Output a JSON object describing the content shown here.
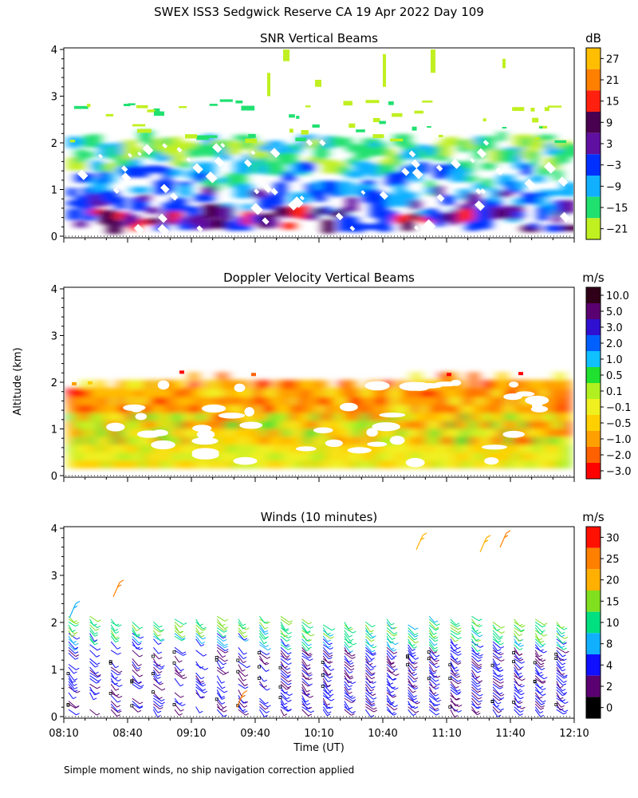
{
  "title": "SWEX ISS3 Sedgwick Reserve CA  19 Apr 2022 Day 109",
  "footnote": "Simple moment winds, no ship navigation correction applied",
  "chart_data": [
    {
      "type": "heatmap",
      "title": "SNR Vertical Beams",
      "ylabel": "",
      "yticks": [
        "0",
        "1",
        "2",
        "3",
        "4"
      ],
      "ylim": [
        0,
        4
      ],
      "xlim": [
        "08:10",
        "12:10"
      ],
      "colorbar": {
        "unit": "dB",
        "labels": [
          "27",
          "21",
          "15",
          "9",
          "3",
          "−3",
          "−9",
          "−15",
          "−21"
        ],
        "colors": [
          "#ffbf00",
          "#ff8000",
          "#ff2010",
          "#4a0050",
          "#6010a0",
          "#0030ff",
          "#10b0ff",
          "#20e070",
          "#c0f020"
        ]
      },
      "note": "Data shown from ~0.15 to ~2.1 km with sparse returns up to 4 km; strongest returns below 1 km"
    },
    {
      "type": "heatmap",
      "title": "Doppler Velocity Vertical Beams",
      "ylabel": "Altitude (km)",
      "yticks": [
        "0",
        "1",
        "2",
        "3",
        "4"
      ],
      "ylim": [
        0,
        4
      ],
      "xlim": [
        "08:10",
        "12:10"
      ],
      "colorbar": {
        "unit": "m/s",
        "labels": [
          "10.0",
          "5.0",
          "3.0",
          "2.0",
          "1.0",
          "0.5",
          "0.1",
          "−0.1",
          "−0.5",
          "−1.0",
          "−2.0",
          "−3.0"
        ],
        "colors": [
          "#300018",
          "#5a0070",
          "#3010d0",
          "#0060ff",
          "#10c0ff",
          "#20e030",
          "#b0f020",
          "#f0f020",
          "#ffd000",
          "#ffa000",
          "#ff6000",
          "#ff0000"
        ]
      },
      "note": "Mostly yellow/orange (~-0.1 to -1.0 m/s) from ~0.15 to ~2 km"
    },
    {
      "type": "scatter",
      "title": "Winds (10 minutes)",
      "xlabel": "Time (UT)",
      "yticks": [
        "0",
        "1",
        "2",
        "3",
        "4"
      ],
      "ylim": [
        0,
        4
      ],
      "xticks": [
        "08:10",
        "08:40",
        "09:10",
        "09:40",
        "10:10",
        "10:40",
        "11:10",
        "11:40",
        "12:10"
      ],
      "colorbar": {
        "unit": "m/s",
        "labels": [
          "30",
          "25",
          "20",
          "15",
          "10",
          "8",
          "4",
          "2",
          "0"
        ],
        "colors": [
          "#ff1000",
          "#ff8000",
          "#ffb000",
          "#80e020",
          "#00e080",
          "#10b0ff",
          "#1010ff",
          "#5a0070",
          "#000000"
        ]
      },
      "note": "Wind barbs every 10 minutes; mostly 2-8 m/s below 2 km, 15-25 m/s near 2 km, upper-level barbs near 4 km around 11:00 and 11:40"
    }
  ]
}
